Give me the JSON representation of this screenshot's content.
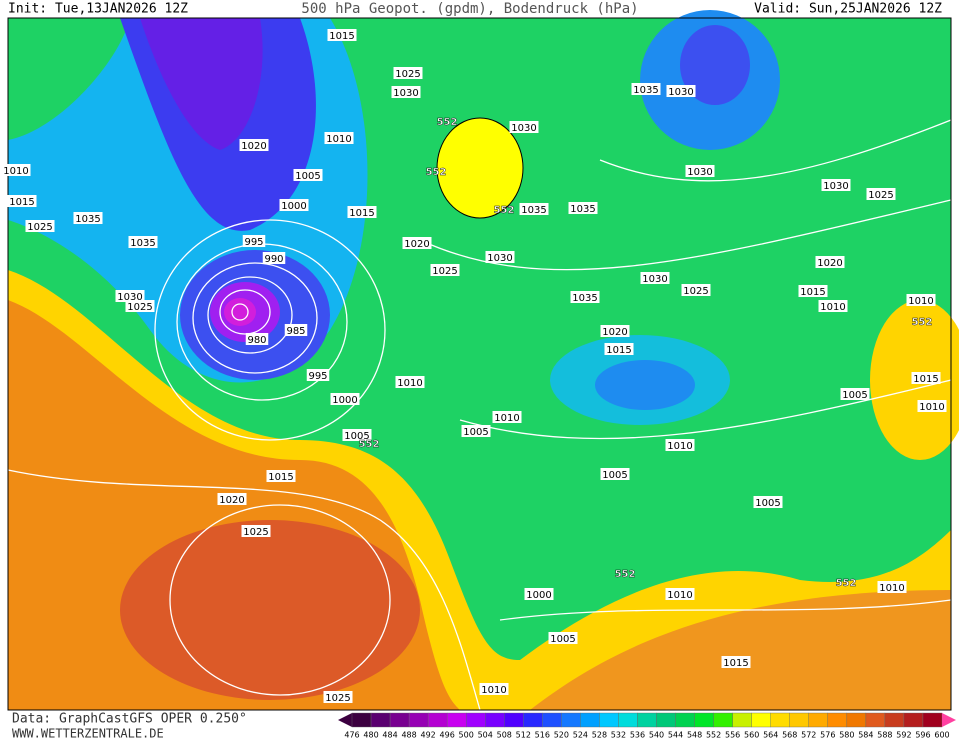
{
  "header": {
    "init": "Init: Tue,13JAN2026 12Z",
    "title": "500 hPa Geopot. (gpdm), Bodendruck (hPa)",
    "valid": "Valid: Sun,25JAN2026 12Z"
  },
  "footer": {
    "source": "Data: GraphCastGFS OPER 0.250°",
    "site": "WWW.WETTERZENTRALE.DE"
  },
  "isobar_labels": [
    1015,
    1025,
    1030,
    1010,
    1020,
    1005,
    1000,
    1015,
    995,
    990,
    1020,
    1025,
    1030,
    1035,
    1035,
    1015,
    1025,
    1030,
    1025,
    980,
    985,
    995,
    1000,
    1005,
    1010,
    1010,
    1005,
    1015,
    1020,
    1025,
    1025,
    1010,
    1005,
    1000,
    1005,
    1010,
    1005,
    1005,
    1015,
    1010,
    1010,
    1010,
    1015,
    1020,
    1025,
    1030,
    1035,
    1020,
    1015,
    1035,
    1035,
    1030,
    1030,
    1025,
    1035,
    1030,
    1030,
    1010,
    1010,
    1015,
    1010
  ],
  "contour_labels": [
    552,
    552,
    552,
    552,
    552,
    552,
    552
  ],
  "legend": {
    "levels": [
      476,
      480,
      484,
      488,
      492,
      496,
      500,
      504,
      508,
      512,
      516,
      520,
      524,
      528,
      532,
      536,
      540,
      544,
      548,
      552,
      556,
      560,
      564,
      568,
      572,
      576,
      580,
      584,
      588,
      592,
      596,
      600
    ],
    "colors": [
      "#3c0040",
      "#5a0070",
      "#780090",
      "#9600b4",
      "#b400d2",
      "#c800f0",
      "#a000ff",
      "#7800ff",
      "#5000ff",
      "#2828ff",
      "#1e50ff",
      "#1478ff",
      "#00a0ff",
      "#00c8ff",
      "#00dcdc",
      "#00d2a0",
      "#00c878",
      "#00d250",
      "#00e628",
      "#32f000",
      "#c8f000",
      "#ffff00",
      "#ffdc00",
      "#ffc800",
      "#ffaa00",
      "#ff8c00",
      "#f07800",
      "#e05a1e",
      "#c83c1e",
      "#b41e1e",
      "#a0001e",
      "#ff40a0"
    ]
  }
}
